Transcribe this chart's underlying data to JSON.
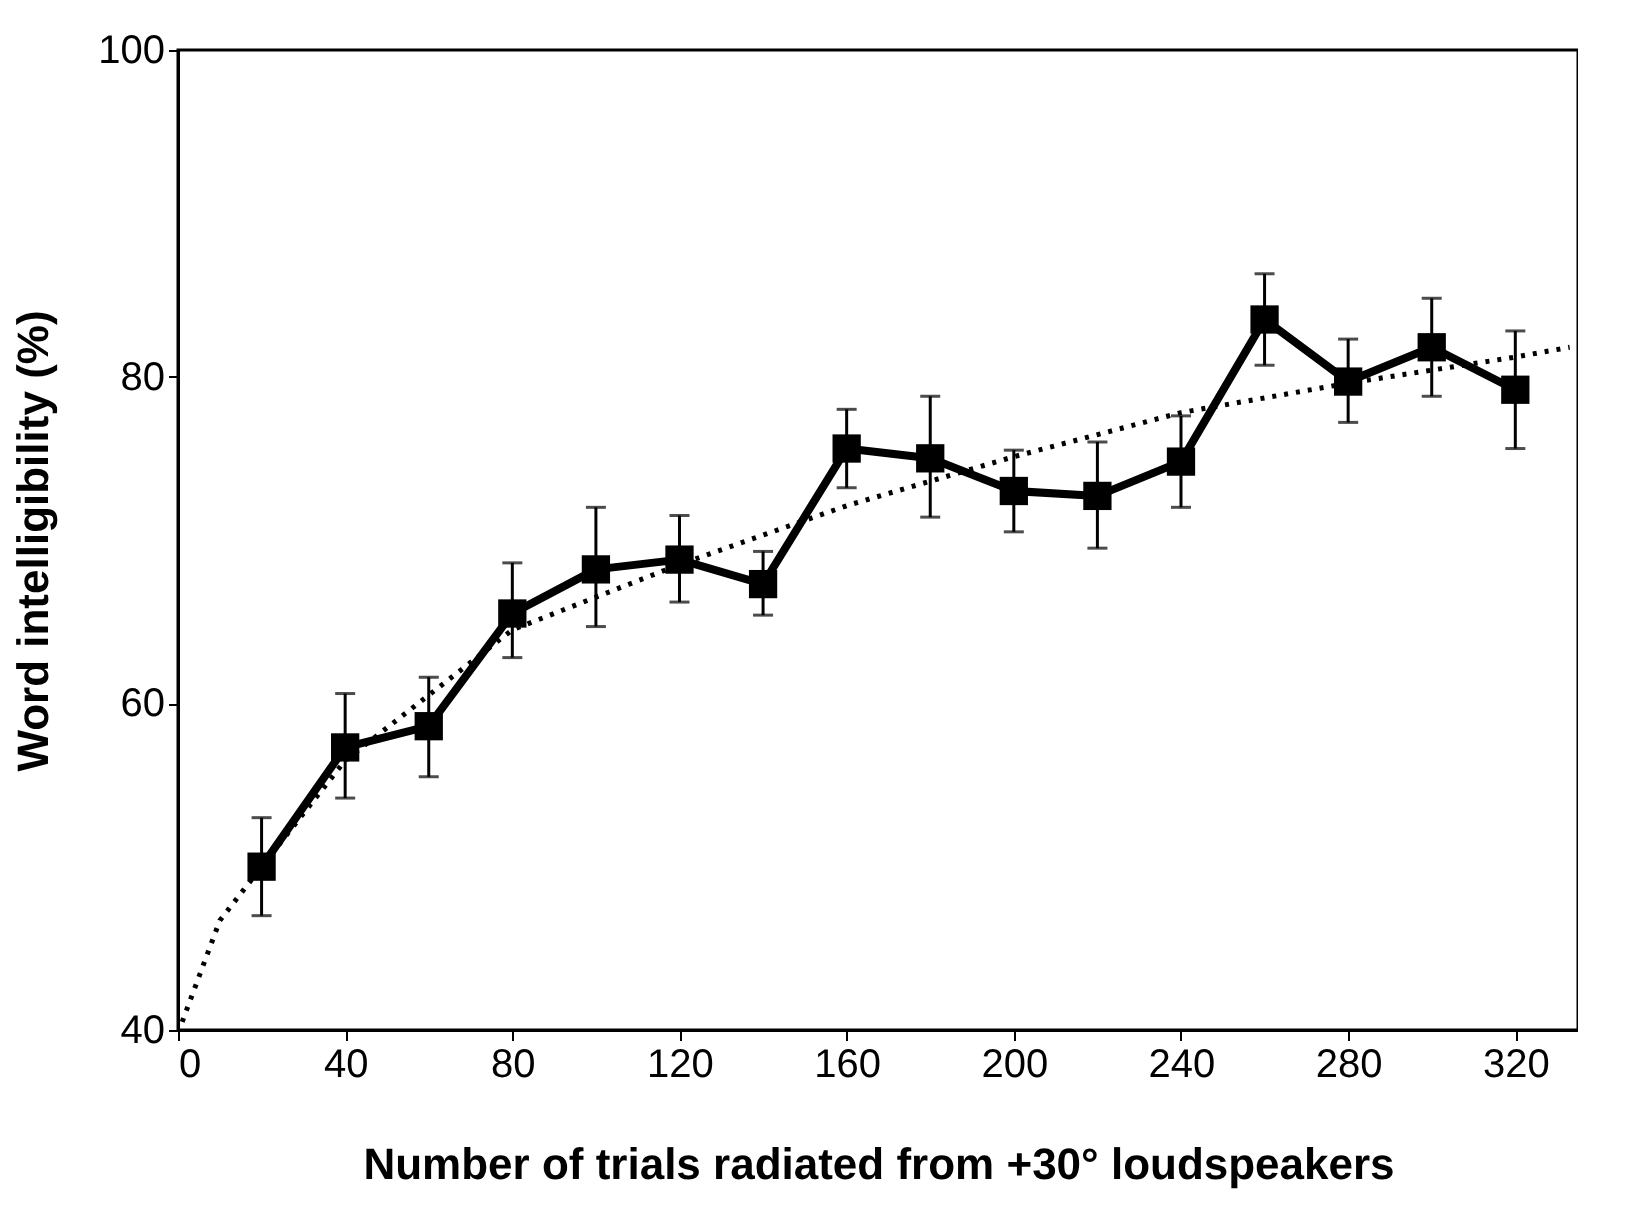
{
  "chart_data": {
    "type": "line",
    "xlabel": "Number of trials radiated from +30°  loudspeakers",
    "ylabel": "Word intelligibility  (%)",
    "xlim": [
      0,
      335
    ],
    "ylim": [
      40,
      100
    ],
    "xticks": [
      0,
      40,
      80,
      120,
      160,
      200,
      240,
      280,
      320
    ],
    "yticks": [
      40,
      60,
      80,
      100
    ],
    "grid": false,
    "series": [
      {
        "color": "#000000",
        "marker": "square",
        "line_style": "solid",
        "x": [
          20,
          40,
          60,
          80,
          100,
          120,
          140,
          160,
          180,
          200,
          220,
          240,
          260,
          280,
          300,
          320
        ],
        "values": [
          50,
          57.3,
          58.6,
          65.5,
          68.2,
          68.8,
          67.3,
          75.6,
          75,
          73,
          72.7,
          74.8,
          83.5,
          79.7,
          81.8,
          79.2
        ],
        "errors": [
          [
            47,
            53
          ],
          [
            54.2,
            60.6
          ],
          [
            55.5,
            61.6
          ],
          [
            62.8,
            68.6
          ],
          [
            64.7,
            72
          ],
          [
            66.2,
            71.5
          ],
          [
            65.4,
            69.3
          ],
          [
            73.2,
            78
          ],
          [
            71.4,
            78.8
          ],
          [
            70.5,
            75.5
          ],
          [
            69.5,
            76
          ],
          [
            72,
            77.6
          ],
          [
            80.7,
            86.3
          ],
          [
            77.2,
            82.3
          ],
          [
            78.8,
            84.8
          ],
          [
            75.6,
            82.8
          ]
        ]
      },
      {
        "type": "line",
        "color": "#000000",
        "marker": "none",
        "line_style": "dotted",
        "x": [
          1,
          10,
          20,
          40,
          80,
          120,
          160,
          200,
          240,
          280,
          320,
          333
        ],
        "values": [
          40.5,
          46.7,
          50,
          56.5,
          64.5,
          68.5,
          72.1,
          75.1,
          77.8,
          79.6,
          81.2,
          81.8
        ]
      }
    ]
  }
}
